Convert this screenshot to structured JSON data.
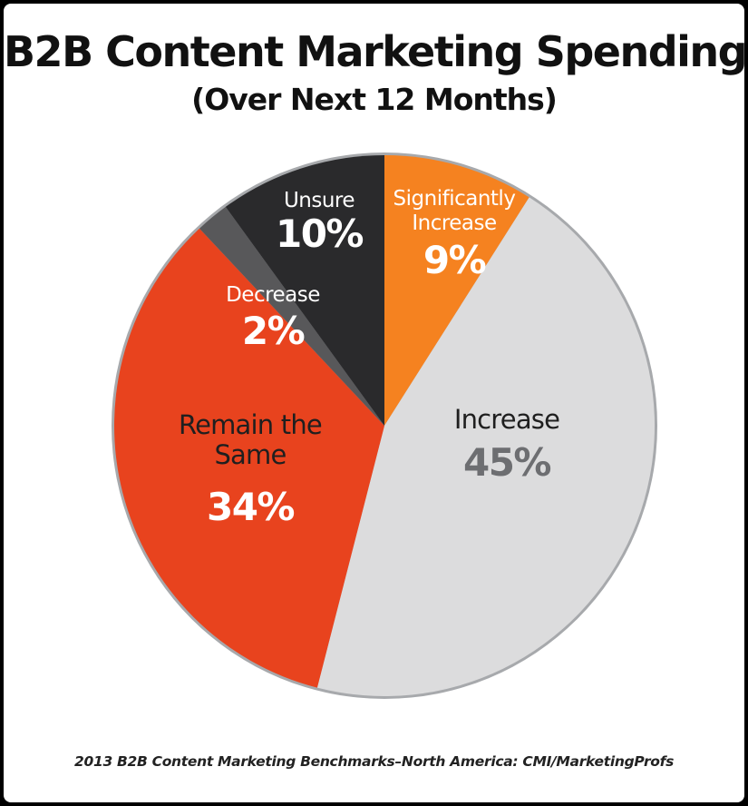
{
  "title": "B2B Content Marketing Spending",
  "subtitle": "(Over Next 12 Months)",
  "source": "2013 B2B Content Marketing Benchmarks–North America: CMI/MarketingProfs",
  "chart_data": {
    "type": "pie",
    "title": "B2B Content Marketing Spending",
    "subtitle": "(Over Next 12 Months)",
    "unit": "%",
    "slices": [
      {
        "key": "sig",
        "label_lines": [
          "Significantly",
          "Increase"
        ],
        "value": 9,
        "value_label": "9%",
        "color": "#f58220",
        "text_color": "#ffffff"
      },
      {
        "key": "inc",
        "label_lines": [
          "Increase"
        ],
        "value": 45,
        "value_label": "45%",
        "color": "#dcdcdd",
        "text_color": "#1f1f1f",
        "value_color": "#6d6e71"
      },
      {
        "key": "same",
        "label_lines": [
          "Remain the",
          "Same"
        ],
        "value": 34,
        "value_label": "34%",
        "color": "#e8431e",
        "text_color": "#1f1f1f",
        "value_color": "#ffffff"
      },
      {
        "key": "dec",
        "label_lines": [
          "Decrease"
        ],
        "value": 2,
        "value_label": "2%",
        "color": "#58585a",
        "text_color": "#ffffff"
      },
      {
        "key": "uns",
        "label_lines": [
          "Unsure"
        ],
        "value": 10,
        "value_label": "10%",
        "color": "#2a2a2c",
        "text_color": "#ffffff"
      }
    ],
    "start_angle_deg": 0,
    "direction": "clockwise",
    "border_color": "#a7a9ac"
  }
}
